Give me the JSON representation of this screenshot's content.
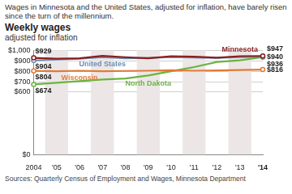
{
  "headline": "Wages in Minnesota and the United States, adjusted for inflation, have barely risen since the turn of the millennium.",
  "chart_data": {
    "type": "line",
    "title": "Weekly wages",
    "subtitle": "adjusted for inflation",
    "source": "Sources: Quarterly Census of Employment and Wages, Minnesota Department",
    "categories": [
      "2004",
      "'05",
      "'06",
      "'07",
      "'08",
      "'09",
      "'10",
      "'11",
      "'12",
      "'13",
      "'14"
    ],
    "series": [
      {
        "name": "Minnesota",
        "color": "#8b1e1e",
        "values": [
          929,
          920,
          925,
          948,
          935,
          925,
          945,
          940,
          930,
          945,
          947
        ],
        "value_labels": [
          "$929",
          null,
          null,
          null,
          null,
          null,
          null,
          null,
          null,
          null,
          "$947"
        ]
      },
      {
        "name": "United States",
        "color": "#6b8fb5",
        "values": [
          904,
          912,
          920,
          935,
          925,
          928,
          935,
          932,
          928,
          935,
          940
        ],
        "value_labels": [
          "$904",
          null,
          null,
          null,
          null,
          null,
          null,
          null,
          null,
          null,
          "$940"
        ]
      },
      {
        "name": "Wisconsin",
        "color": "#e07b39",
        "values": [
          804,
          800,
          805,
          800,
          803,
          805,
          810,
          805,
          808,
          812,
          816
        ],
        "value_labels": [
          "$804",
          null,
          null,
          null,
          null,
          null,
          null,
          null,
          null,
          null,
          "$816"
        ]
      },
      {
        "name": "North Dakota",
        "color": "#6cb33f",
        "values": [
          674,
          690,
          705,
          720,
          730,
          760,
          800,
          840,
          890,
          905,
          936
        ],
        "value_labels": [
          "$674",
          null,
          null,
          null,
          null,
          null,
          null,
          null,
          null,
          null,
          "$936"
        ]
      }
    ],
    "ylim": [
      0,
      1000
    ],
    "yticks": [
      {
        "value": 0,
        "label": "$0"
      },
      {
        "value": 600,
        "label": "$600"
      },
      {
        "value": 700,
        "label": "$700"
      },
      {
        "value": 800,
        "label": "$800"
      },
      {
        "value": 900,
        "label": "$900"
      },
      {
        "value": 1000,
        "label": "$1,000"
      }
    ],
    "grid": true,
    "data_labels": true
  }
}
